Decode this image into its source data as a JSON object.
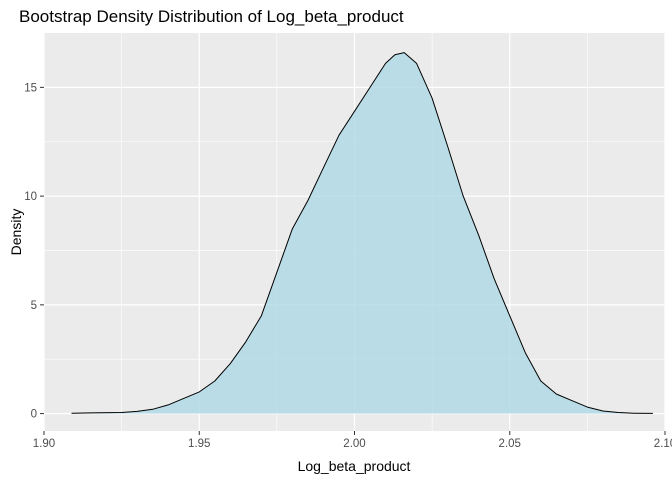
{
  "chart_data": {
    "type": "area",
    "title": "Bootstrap Density Distribution of Log_beta_product",
    "xlabel": "Log_beta_product",
    "ylabel": "Density",
    "xlim": [
      1.9,
      2.1
    ],
    "ylim": [
      -0.8,
      17.5
    ],
    "x_ticks": [
      1.9,
      1.95,
      2.0,
      2.05,
      2.1
    ],
    "x_tick_labels": [
      "1.90",
      "1.95",
      "2.00",
      "2.05",
      "2.10"
    ],
    "y_ticks": [
      0,
      5,
      10,
      15
    ],
    "y_tick_labels": [
      "0",
      "5",
      "10",
      "15"
    ],
    "grid": true,
    "legend": "none",
    "colors": {
      "fill": "#add8e6",
      "fill_opacity": 0.8,
      "line": "#000000",
      "panel": "#ebebeb",
      "grid": "#ffffff"
    },
    "x": [
      1.909,
      1.915,
      1.925,
      1.93,
      1.935,
      1.94,
      1.945,
      1.95,
      1.955,
      1.96,
      1.965,
      1.97,
      1.975,
      1.98,
      1.985,
      1.99,
      1.995,
      2.0,
      2.005,
      2.01,
      2.013,
      2.016,
      2.02,
      2.025,
      2.03,
      2.035,
      2.04,
      2.045,
      2.05,
      2.055,
      2.06,
      2.065,
      2.07,
      2.075,
      2.08,
      2.085,
      2.09,
      2.096
    ],
    "y": [
      0.02,
      0.03,
      0.05,
      0.1,
      0.2,
      0.4,
      0.7,
      1.0,
      1.5,
      2.3,
      3.3,
      4.5,
      6.5,
      8.5,
      9.8,
      11.3,
      12.8,
      13.9,
      15.0,
      16.1,
      16.5,
      16.6,
      16.1,
      14.5,
      12.3,
      10.0,
      8.2,
      6.2,
      4.5,
      2.8,
      1.5,
      0.9,
      0.6,
      0.3,
      0.12,
      0.05,
      0.02,
      0.01
    ]
  }
}
